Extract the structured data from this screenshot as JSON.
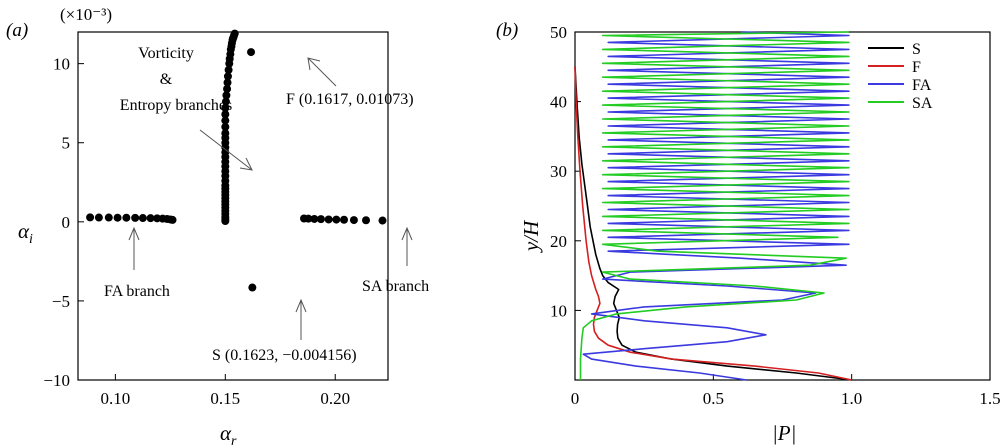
{
  "chart_data": [
    {
      "type": "scatter",
      "panel_label": "(a)",
      "exponent_label": "(×10⁻³)",
      "xlabel_base": "α",
      "xlabel_sub": "r",
      "ylabel_base": "α",
      "ylabel_sub": "i",
      "xlim": [
        0.083,
        0.224
      ],
      "ylim": [
        -10,
        12
      ],
      "xticks": [
        "0.10",
        "0.15",
        "0.20"
      ],
      "xtick_values": [
        0.1,
        0.15,
        0.2
      ],
      "yticks": [
        "−10",
        "−5",
        "0",
        "5",
        "10"
      ],
      "ytick_values": [
        -10,
        -5,
        0,
        5,
        10
      ],
      "y_multiplier": 0.001,
      "marker_color": "#000000",
      "series": [
        {
          "x": [
            0.0885,
            0.0925,
            0.097,
            0.101,
            0.105,
            0.109,
            0.1125,
            0.116,
            0.119,
            0.1215,
            0.1235,
            0.125,
            0.126
          ],
          "y": [
            0.28,
            0.27,
            0.27,
            0.26,
            0.26,
            0.25,
            0.24,
            0.23,
            0.22,
            0.2,
            0.18,
            0.15,
            0.12
          ]
        },
        {
          "x": [
            0.1858,
            0.1878,
            0.1905,
            0.1935,
            0.197,
            0.2005,
            0.204,
            0.2085,
            0.214,
            0.2215
          ],
          "y": [
            0.21,
            0.2,
            0.18,
            0.17,
            0.15,
            0.14,
            0.13,
            0.11,
            0.1,
            0.08
          ],
          "label": "SA branch"
        },
        {
          "x": [
            0.15,
            0.15,
            0.15,
            0.15,
            0.15,
            0.15,
            0.15,
            0.15,
            0.15,
            0.15,
            0.15,
            0.15,
            0.15,
            0.15,
            0.15,
            0.15,
            0.15,
            0.15,
            0.15,
            0.15,
            0.15,
            0.15,
            0.15,
            0.15,
            0.15,
            0.15,
            0.15,
            0.15,
            0.1503,
            0.1505,
            0.1508,
            0.151,
            0.1512,
            0.1515,
            0.1518,
            0.152,
            0.1523,
            0.1525,
            0.1528,
            0.153,
            0.1533,
            0.1535,
            0.1538,
            0.154,
            0.1543
          ],
          "y": [
            0.05,
            0.15,
            0.3,
            0.5,
            0.7,
            0.9,
            1.1,
            1.3,
            1.5,
            1.7,
            1.9,
            2.1,
            2.3,
            2.6,
            2.9,
            3.2,
            3.5,
            3.8,
            4.1,
            4.4,
            4.7,
            5.0,
            5.3,
            5.6,
            6.0,
            6.4,
            6.8,
            7.2,
            7.6,
            8.0,
            8.4,
            8.8,
            9.2,
            9.6,
            10.0,
            10.3,
            10.6,
            10.9,
            11.1,
            11.3,
            11.5,
            11.6,
            11.7,
            11.8,
            11.9
          ]
        },
        {
          "x": [
            0.1617
          ],
          "y": [
            10.73
          ],
          "label": "F (0.1617, 0.01073)"
        },
        {
          "x": [
            0.1623
          ],
          "y": [
            -4.156
          ],
          "label": "S (0.1623, −0.004156)"
        }
      ],
      "annotations": {
        "vorticity_line1": "Vorticity",
        "vorticity_line2": "&",
        "vorticity_line3": "Entropy branches",
        "fa_branch": "FA branch",
        "sa_branch": "SA branch",
        "f_point": "F (0.1617, 0.01073)",
        "s_point": "S (0.1623, −0.004156)"
      }
    },
    {
      "type": "line",
      "panel_label": "(b)",
      "xlabel": "|P|",
      "ylabel": "y/H",
      "xlim": [
        0,
        1.5
      ],
      "ylim": [
        0,
        50
      ],
      "xticks": [
        "0",
        "0.5",
        "1.0",
        "1.5"
      ],
      "xtick_values": [
        0,
        0.5,
        1.0,
        1.5
      ],
      "yticks": [
        "10",
        "20",
        "30",
        "40",
        "50"
      ],
      "ytick_values": [
        10,
        20,
        30,
        40,
        50
      ],
      "legend_position": "top-right",
      "series": [
        {
          "name": "S",
          "color": "#000000",
          "y": [
            0,
            1,
            2,
            3,
            4,
            5,
            6,
            7,
            8,
            9,
            10,
            11,
            12,
            13,
            14,
            15,
            16,
            18,
            20,
            22,
            25,
            28,
            31,
            35,
            40,
            45
          ],
          "x": [
            1.0,
            0.8,
            0.55,
            0.35,
            0.22,
            0.17,
            0.155,
            0.152,
            0.154,
            0.16,
            0.15,
            0.14,
            0.145,
            0.158,
            0.12,
            0.1,
            0.09,
            0.075,
            0.065,
            0.055,
            0.045,
            0.035,
            0.025,
            0.015,
            0.007,
            0.0
          ]
        },
        {
          "name": "F",
          "color": "#d42020",
          "y": [
            0,
            1,
            2,
            3,
            4,
            5,
            6,
            7,
            8,
            9,
            10,
            11,
            12,
            13,
            15,
            17,
            20,
            25,
            30,
            35,
            40,
            45
          ],
          "x": [
            1.0,
            0.88,
            0.65,
            0.35,
            0.2,
            0.12,
            0.085,
            0.07,
            0.067,
            0.07,
            0.08,
            0.09,
            0.085,
            0.075,
            0.06,
            0.05,
            0.04,
            0.028,
            0.018,
            0.01,
            0.004,
            0.0
          ]
        },
        {
          "name": "FA",
          "color": "#3a3ae0",
          "y": [
            0,
            1,
            2,
            3,
            3.7,
            4.5,
            5.5,
            6.5,
            7.5,
            8.5,
            9.5,
            10.5,
            11.5,
            12.5,
            13.5,
            14.5,
            15.5,
            16.5,
            17.5,
            18.5,
            19.5,
            20.5,
            21.5,
            22.5,
            23.5,
            24.5,
            25.5,
            26.5,
            27.5,
            28.5,
            29.5,
            30.5,
            31.5,
            32.5,
            33.5,
            34.5,
            35.5,
            36.5,
            37.5,
            38.5,
            39.5,
            40.5,
            41.5,
            42.5,
            43.5,
            44.5,
            45.5,
            46.5,
            47.5,
            48.5,
            49.5,
            50
          ],
          "x": [
            0.62,
            0.45,
            0.22,
            0.06,
            0.03,
            0.25,
            0.55,
            0.69,
            0.55,
            0.25,
            0.06,
            0.25,
            0.75,
            0.87,
            0.55,
            0.1,
            0.2,
            0.98,
            0.6,
            0.12,
            0.99,
            0.12,
            0.99,
            0.12,
            0.99,
            0.12,
            0.99,
            0.12,
            0.99,
            0.12,
            0.99,
            0.12,
            0.99,
            0.12,
            0.99,
            0.12,
            0.99,
            0.12,
            0.99,
            0.12,
            0.99,
            0.12,
            0.99,
            0.12,
            0.99,
            0.12,
            0.99,
            0.12,
            0.99,
            0.12,
            0.99,
            0.6
          ]
        },
        {
          "name": "SA",
          "color": "#22cc22",
          "y": [
            0,
            3,
            6,
            7.5,
            8.5,
            9.5,
            10.5,
            11.5,
            12.5,
            13.5,
            14.5,
            15.5,
            16.5,
            17.5,
            18.5,
            19.5,
            20.5,
            21.5,
            22.5,
            23.5,
            24.5,
            25.5,
            26.5,
            27.5,
            28.5,
            29.5,
            30.5,
            31.5,
            32.5,
            33.5,
            34.5,
            35.5,
            36.5,
            37.5,
            38.5,
            39.5,
            40.5,
            41.5,
            42.5,
            43.5,
            44.5,
            45.5,
            46.5,
            47.5,
            48.5,
            49.5,
            50
          ],
          "x": [
            0.02,
            0.02,
            0.025,
            0.03,
            0.06,
            0.15,
            0.4,
            0.8,
            0.9,
            0.65,
            0.2,
            0.1,
            0.85,
            0.98,
            0.3,
            0.1,
            0.95,
            0.1,
            0.99,
            0.1,
            0.99,
            0.1,
            0.99,
            0.1,
            0.99,
            0.1,
            0.99,
            0.1,
            0.99,
            0.1,
            0.99,
            0.1,
            0.99,
            0.1,
            0.99,
            0.1,
            0.99,
            0.1,
            0.99,
            0.1,
            0.99,
            0.1,
            0.99,
            0.1,
            0.99,
            0.1,
            0.99
          ]
        }
      ]
    }
  ]
}
